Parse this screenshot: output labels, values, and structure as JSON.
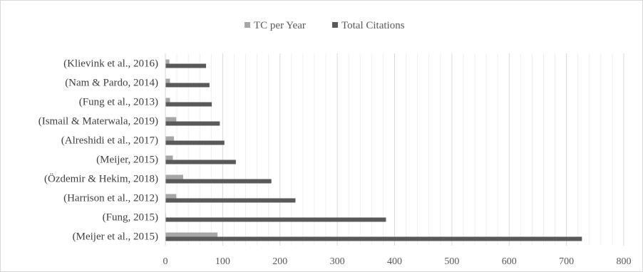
{
  "chart_data": {
    "type": "bar",
    "orientation": "horizontal",
    "title": "",
    "xlabel": "",
    "ylabel": "",
    "categories": [
      "(Meijer et al., 2015)",
      "(Fung, 2015)",
      "(Harrison et al., 2012)",
      "(Özdemir & Hekim, 2018)",
      "(Meijer, 2015)",
      "(Alreshidi et al., 2017)",
      "(Ismail & Materwala, 2019)",
      "(Fung et al., 2013)",
      "(Nam & Pardo, 2014)",
      "(Klievink et al., 2016)"
    ],
    "series": [
      {
        "name": "TC per Year",
        "color": "#a6a6a6",
        "values": [
          91,
          1,
          19,
          31,
          13,
          15,
          19,
          8,
          8,
          7
        ]
      },
      {
        "name": "Total Citations",
        "color": "#595959",
        "values": [
          727,
          385,
          227,
          185,
          123,
          103,
          95,
          81,
          77,
          71
        ]
      }
    ],
    "xlim": [
      0,
      800
    ],
    "xticks": [
      "0",
      "100",
      "200",
      "300",
      "400",
      "500",
      "600",
      "700",
      "800"
    ],
    "grid": true,
    "legend_position": "top"
  }
}
